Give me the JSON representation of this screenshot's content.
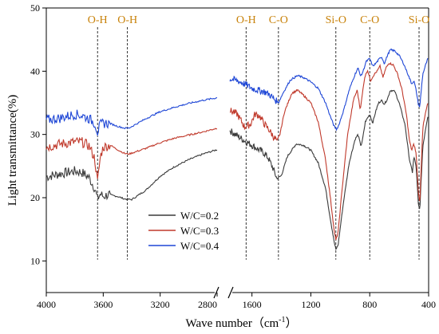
{
  "chart_data": {
    "type": "line",
    "xlabel": "Wave number（cm",
    "xlabel_sup": "-1",
    "xlabel_end": "）",
    "ylabel": "Light transmittance(%)",
    "ylim": [
      5,
      50
    ],
    "yticks": [
      10,
      20,
      30,
      40,
      50
    ],
    "x_axis_break": true,
    "x_segments": [
      {
        "range": [
          4000,
          2800
        ],
        "ticks": [
          4000,
          3600,
          3200,
          2800
        ]
      },
      {
        "range": [
          1750,
          400
        ],
        "ticks": [
          1600,
          1200,
          800,
          400
        ]
      }
    ],
    "band_markers": [
      {
        "label": "O-H",
        "x": 3640
      },
      {
        "label": "O-H",
        "x": 3430
      },
      {
        "label": "O-H",
        "x": 1640
      },
      {
        "label": "C-O",
        "x": 1420
      },
      {
        "label": "Si-O",
        "x": 1030
      },
      {
        "label": "C-O",
        "x": 800
      },
      {
        "label": "Si-O",
        "x": 465
      }
    ],
    "legend_position": "lower-left",
    "series": [
      {
        "name": "W/C=0.2",
        "color": "#3a3a3a",
        "points": [
          [
            4000,
            23.3
          ],
          [
            3900,
            23.8
          ],
          [
            3800,
            24.2
          ],
          [
            3750,
            24.0
          ],
          [
            3700,
            23.2
          ],
          [
            3660,
            21.5
          ],
          [
            3640,
            19.8
          ],
          [
            3620,
            20.6
          ],
          [
            3600,
            20.2
          ],
          [
            3560,
            20.5
          ],
          [
            3500,
            20.2
          ],
          [
            3450,
            19.8
          ],
          [
            3400,
            19.7
          ],
          [
            3300,
            21.2
          ],
          [
            3200,
            23.4
          ],
          [
            3100,
            24.9
          ],
          [
            3000,
            26.0
          ],
          [
            2900,
            26.9
          ],
          [
            2800,
            27.6
          ],
          [
            1750,
            30.6
          ],
          [
            1700,
            29.8
          ],
          [
            1650,
            29.0
          ],
          [
            1600,
            28.3
          ],
          [
            1560,
            27.7
          ],
          [
            1520,
            27.1
          ],
          [
            1490,
            26.3
          ],
          [
            1460,
            24.8
          ],
          [
            1430,
            23.0
          ],
          [
            1400,
            23.5
          ],
          [
            1360,
            26.5
          ],
          [
            1300,
            28.5
          ],
          [
            1250,
            28.3
          ],
          [
            1200,
            27.5
          ],
          [
            1150,
            25.5
          ],
          [
            1100,
            21.5
          ],
          [
            1070,
            17.0
          ],
          [
            1040,
            12.8
          ],
          [
            1030,
            11.8
          ],
          [
            1015,
            12.5
          ],
          [
            980,
            19.0
          ],
          [
            940,
            25.5
          ],
          [
            900,
            29.2
          ],
          [
            880,
            30.0
          ],
          [
            860,
            28.2
          ],
          [
            850,
            29.0
          ],
          [
            830,
            32.0
          ],
          [
            800,
            33.2
          ],
          [
            780,
            31.8
          ],
          [
            760,
            33.6
          ],
          [
            740,
            35.0
          ],
          [
            720,
            35.4
          ],
          [
            700,
            34.8
          ],
          [
            680,
            35.6
          ],
          [
            660,
            37.0
          ],
          [
            630,
            36.8
          ],
          [
            600,
            35.0
          ],
          [
            560,
            31.5
          ],
          [
            530,
            26.0
          ],
          [
            510,
            24.0
          ],
          [
            500,
            26.5
          ],
          [
            485,
            25.0
          ],
          [
            470,
            19.0
          ],
          [
            460,
            18.0
          ],
          [
            450,
            23.0
          ],
          [
            440,
            28.0
          ],
          [
            420,
            31.0
          ],
          [
            405,
            33.0
          ]
        ]
      },
      {
        "name": "W/C=0.3",
        "color": "#c0392b",
        "points": [
          [
            4000,
            28.0
          ],
          [
            3900,
            28.5
          ],
          [
            3800,
            28.8
          ],
          [
            3750,
            28.8
          ],
          [
            3700,
            28.2
          ],
          [
            3660,
            26.2
          ],
          [
            3640,
            22.5
          ],
          [
            3620,
            26.5
          ],
          [
            3600,
            28.0
          ],
          [
            3550,
            28.3
          ],
          [
            3500,
            27.6
          ],
          [
            3450,
            27.0
          ],
          [
            3420,
            26.9
          ],
          [
            3300,
            27.8
          ],
          [
            3200,
            28.7
          ],
          [
            3100,
            29.4
          ],
          [
            3000,
            29.9
          ],
          [
            2900,
            30.4
          ],
          [
            2800,
            31.0
          ],
          [
            1750,
            33.8
          ],
          [
            1700,
            33.2
          ],
          [
            1650,
            31.2
          ],
          [
            1610,
            31.6
          ],
          [
            1580,
            33.2
          ],
          [
            1550,
            33.0
          ],
          [
            1520,
            31.8
          ],
          [
            1480,
            30.6
          ],
          [
            1450,
            29.5
          ],
          [
            1430,
            29.0
          ],
          [
            1410,
            30.0
          ],
          [
            1380,
            33.5
          ],
          [
            1330,
            36.5
          ],
          [
            1290,
            37.0
          ],
          [
            1250,
            36.2
          ],
          [
            1200,
            35.0
          ],
          [
            1150,
            32.0
          ],
          [
            1100,
            26.0
          ],
          [
            1070,
            20.5
          ],
          [
            1040,
            14.5
          ],
          [
            1030,
            13.3
          ],
          [
            1015,
            14.5
          ],
          [
            985,
            22.0
          ],
          [
            950,
            30.0
          ],
          [
            910,
            35.5
          ],
          [
            885,
            37.0
          ],
          [
            865,
            34.0
          ],
          [
            855,
            35.5
          ],
          [
            835,
            39.0
          ],
          [
            815,
            40.2
          ],
          [
            795,
            38.5
          ],
          [
            770,
            39.5
          ],
          [
            750,
            40.0
          ],
          [
            730,
            40.8
          ],
          [
            710,
            39.0
          ],
          [
            690,
            40.5
          ],
          [
            670,
            41.3
          ],
          [
            640,
            41.0
          ],
          [
            610,
            39.5
          ],
          [
            580,
            37.0
          ],
          [
            550,
            33.0
          ],
          [
            530,
            29.0
          ],
          [
            515,
            27.5
          ],
          [
            500,
            28.5
          ],
          [
            485,
            27.0
          ],
          [
            470,
            21.0
          ],
          [
            460,
            19.0
          ],
          [
            450,
            25.0
          ],
          [
            440,
            31.0
          ],
          [
            420,
            33.5
          ],
          [
            405,
            35.0
          ]
        ]
      },
      {
        "name": "W/C=0.4",
        "color": "#1f47d6",
        "points": [
          [
            4000,
            32.3
          ],
          [
            3900,
            32.6
          ],
          [
            3800,
            33.2
          ],
          [
            3750,
            33.0
          ],
          [
            3700,
            32.5
          ],
          [
            3660,
            31.8
          ],
          [
            3640,
            30.4
          ],
          [
            3620,
            31.5
          ],
          [
            3600,
            31.8
          ],
          [
            3550,
            31.7
          ],
          [
            3500,
            31.3
          ],
          [
            3450,
            31.0
          ],
          [
            3420,
            31.0
          ],
          [
            3300,
            32.5
          ],
          [
            3200,
            33.6
          ],
          [
            3100,
            34.3
          ],
          [
            3000,
            34.9
          ],
          [
            2900,
            35.4
          ],
          [
            2800,
            35.8
          ],
          [
            1750,
            38.8
          ],
          [
            1700,
            38.5
          ],
          [
            1650,
            38.0
          ],
          [
            1600,
            37.3
          ],
          [
            1560,
            37.0
          ],
          [
            1520,
            36.8
          ],
          [
            1480,
            36.3
          ],
          [
            1450,
            35.6
          ],
          [
            1420,
            35.0
          ],
          [
            1390,
            36.5
          ],
          [
            1340,
            38.6
          ],
          [
            1290,
            39.3
          ],
          [
            1250,
            39.0
          ],
          [
            1200,
            38.3
          ],
          [
            1150,
            37.3
          ],
          [
            1100,
            35.0
          ],
          [
            1070,
            33.0
          ],
          [
            1040,
            31.2
          ],
          [
            1025,
            30.8
          ],
          [
            1010,
            31.5
          ],
          [
            975,
            34.0
          ],
          [
            940,
            37.0
          ],
          [
            900,
            39.5
          ],
          [
            880,
            40.5
          ],
          [
            860,
            39.2
          ],
          [
            845,
            40.0
          ],
          [
            825,
            41.5
          ],
          [
            800,
            42.0
          ],
          [
            780,
            40.8
          ],
          [
            760,
            41.2
          ],
          [
            740,
            41.8
          ],
          [
            720,
            42.3
          ],
          [
            700,
            41.2
          ],
          [
            680,
            42.5
          ],
          [
            660,
            43.4
          ],
          [
            630,
            43.2
          ],
          [
            600,
            42.5
          ],
          [
            570,
            41.2
          ],
          [
            540,
            39.5
          ],
          [
            515,
            38.0
          ],
          [
            500,
            38.5
          ],
          [
            485,
            37.0
          ],
          [
            470,
            34.8
          ],
          [
            460,
            34.3
          ],
          [
            450,
            37.0
          ],
          [
            440,
            39.5
          ],
          [
            420,
            41.0
          ],
          [
            405,
            42.0
          ]
        ]
      }
    ]
  }
}
